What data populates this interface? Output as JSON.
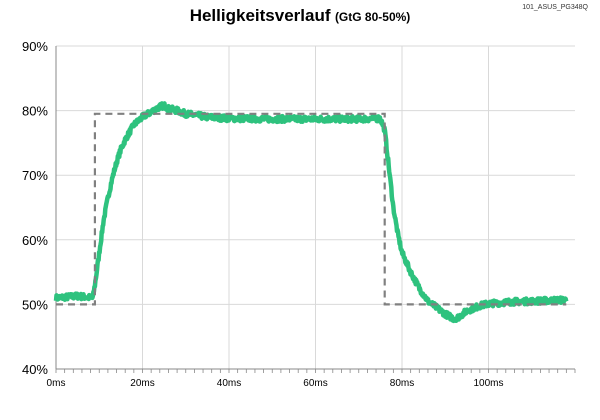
{
  "chart_data": {
    "type": "line",
    "title": "Helligkeitsverlauf",
    "subtitle": "(GtG 80-50%)",
    "corner_label": "101_ASUS_PG348Q",
    "xlabel": "",
    "ylabel": "",
    "xlim": [
      0,
      120
    ],
    "ylim": [
      40,
      90
    ],
    "x_ticks": [
      0,
      20,
      40,
      60,
      80,
      100
    ],
    "x_tick_labels": [
      "0ms",
      "20ms",
      "40ms",
      "60ms",
      "80ms",
      "100ms"
    ],
    "y_ticks": [
      40,
      50,
      60,
      70,
      80,
      90
    ],
    "y_tick_labels": [
      "40%",
      "50%",
      "60%",
      "70%",
      "80%",
      "90%"
    ],
    "grid": true,
    "legend": "none",
    "colors": {
      "measured": "#2ec27e",
      "reference": "#808080",
      "grid": "#d9d9d9"
    },
    "series": [
      {
        "style": "solid",
        "x": [
          0,
          5,
          8.5,
          9,
          10,
          11,
          12,
          13,
          14,
          15,
          16,
          18,
          20,
          22,
          24,
          25,
          26,
          28,
          30,
          35,
          40,
          50,
          60,
          70,
          75,
          76,
          77,
          78,
          79,
          80,
          82,
          84,
          86,
          88,
          90,
          92,
          93,
          95,
          98,
          100,
          105,
          110,
          118
        ],
        "y": [
          51,
          51.3,
          51,
          53,
          58,
          63,
          66.5,
          69.5,
          72,
          74,
          75.5,
          77.8,
          79,
          79.8,
          80.6,
          80.8,
          80.3,
          80,
          79.5,
          79,
          78.8,
          78.7,
          78.7,
          78.7,
          78.8,
          77,
          71,
          65,
          61,
          58,
          55,
          52.5,
          50.5,
          49.5,
          48.5,
          47.8,
          48,
          49,
          49.8,
          50.1,
          50.4,
          50.5,
          50.7
        ]
      },
      {
        "style": "dashed",
        "x": [
          0,
          9,
          9,
          76,
          76,
          118
        ],
        "y": [
          50,
          50,
          79.5,
          79.5,
          50,
          50
        ]
      }
    ]
  }
}
